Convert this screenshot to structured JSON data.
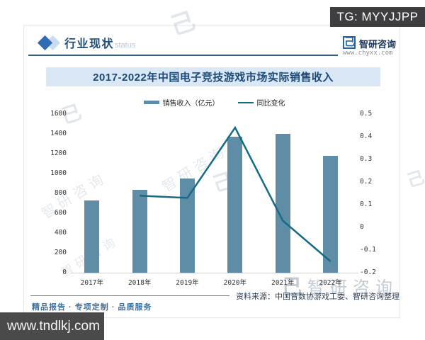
{
  "overlay": {
    "tg_label": "TG: MYYJJPP",
    "site_url": "www.tndlkj.com"
  },
  "header": {
    "section_title": "行业现状",
    "section_watermark": "status",
    "brand_logo_glyph": "己",
    "brand_name": "智研咨询",
    "brand_url": "www.chyxx.com"
  },
  "chart_data": {
    "type": "bar",
    "subtype": "bar+line combo, dual axis",
    "title": "2017-2022年中国电子竞技游戏市场实际销售收入",
    "categories": [
      "2017年",
      "2018年",
      "2019年",
      "2020年",
      "2021年",
      "2022年"
    ],
    "series": [
      {
        "name": "销售收入（亿元）",
        "type": "bar",
        "axis": "left",
        "color": "#5f8da6",
        "values": [
          730,
          835,
          950,
          1370,
          1400,
          1180
        ]
      },
      {
        "name": "同比变化",
        "type": "line",
        "axis": "right",
        "color": "#156a85",
        "values": [
          null,
          0.14,
          0.13,
          0.44,
          0.03,
          -0.15
        ]
      }
    ],
    "left_axis": {
      "min": 0,
      "max": 1600,
      "ticks": [
        1600,
        1400,
        1200,
        1000,
        800,
        600,
        400,
        200,
        0
      ]
    },
    "right_axis": {
      "min": -0.2,
      "max": 0.5,
      "ticks": [
        0.5,
        0.4,
        0.3,
        0.2,
        0.1,
        0,
        -0.1,
        -0.2
      ]
    },
    "grid": false,
    "legend_position": "top"
  },
  "footer": {
    "tagline": "精品报告 · 专项定制 · 品质服务",
    "source": "资料来源：中国音数协游戏工委、智研咨询整理"
  },
  "watermark": {
    "text": "智研咨询",
    "logo_glyph": "己"
  },
  "colors": {
    "bar": "#5f8da6",
    "line": "#156a85",
    "banner_bg": "#d9e8f4",
    "accent_blue": "#1f4e79",
    "tg_box_bg": "#3e3e40",
    "site_box_bg": "#4a4a4a"
  }
}
